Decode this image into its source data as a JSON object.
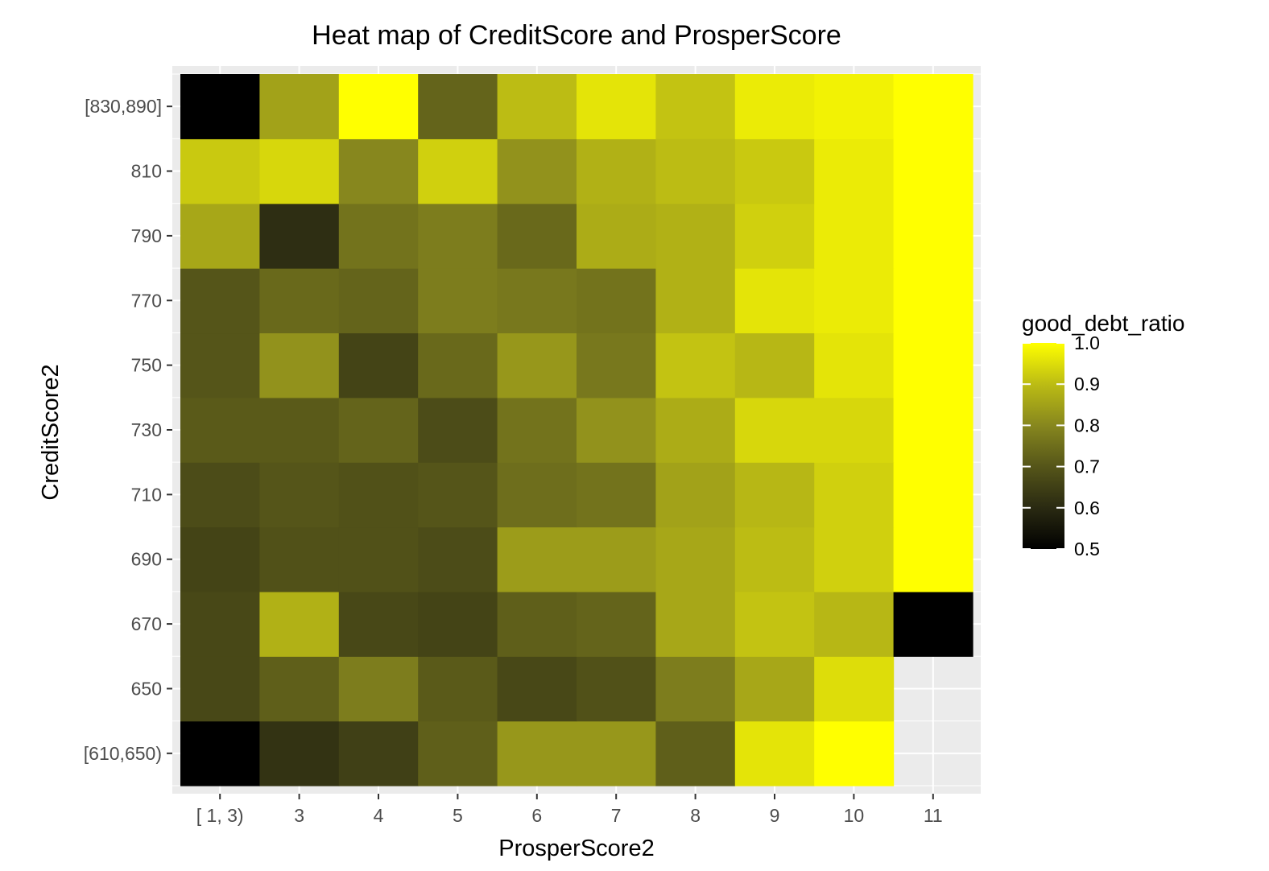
{
  "chart_data": {
    "type": "heatmap",
    "title": "Heat map of CreditScore and ProsperScore",
    "xlabel": "ProsperScore2",
    "ylabel": "CreditScore2",
    "x_categories": [
      "[ 1, 3)",
      "3",
      "4",
      "5",
      "6",
      "7",
      "8",
      "9",
      "10",
      "11"
    ],
    "y_categories": [
      "[610,650)",
      "650",
      "670",
      "690",
      "710",
      "730",
      "750",
      "770",
      "790",
      "810",
      "[830,890]"
    ],
    "legend": {
      "title": "good_debt_ratio",
      "range": [
        0.5,
        1.0
      ],
      "ticks": [
        "1.0",
        "0.9",
        "0.8",
        "0.7",
        "0.6",
        "0.5"
      ],
      "position": "right"
    },
    "color_low": "#000000",
    "color_high": "#ffff00",
    "panel_background": "#ebebeb",
    "grid": true,
    "values": [
      [
        0.5,
        0.62,
        0.65,
        0.72,
        0.83,
        0.83,
        0.72,
        0.96,
        1.0,
        null
      ],
      [
        0.67,
        0.72,
        0.78,
        0.71,
        0.67,
        0.69,
        0.78,
        0.86,
        0.95,
        null
      ],
      [
        0.67,
        0.88,
        0.67,
        0.66,
        0.72,
        0.73,
        0.86,
        0.91,
        0.89,
        0.5
      ],
      [
        0.66,
        0.69,
        0.69,
        0.68,
        0.84,
        0.84,
        0.86,
        0.9,
        0.93,
        1.0
      ],
      [
        0.68,
        0.7,
        0.69,
        0.7,
        0.75,
        0.76,
        0.85,
        0.89,
        0.93,
        1.0
      ],
      [
        0.71,
        0.71,
        0.73,
        0.68,
        0.76,
        0.82,
        0.87,
        0.94,
        0.94,
        1.0
      ],
      [
        0.7,
        0.82,
        0.66,
        0.74,
        0.83,
        0.77,
        0.91,
        0.89,
        0.96,
        1.0
      ],
      [
        0.7,
        0.74,
        0.73,
        0.78,
        0.77,
        0.76,
        0.88,
        0.96,
        0.97,
        1.0
      ],
      [
        0.86,
        0.61,
        0.76,
        0.78,
        0.74,
        0.87,
        0.88,
        0.93,
        0.97,
        1.0
      ],
      [
        0.92,
        0.94,
        0.8,
        0.93,
        0.82,
        0.88,
        0.9,
        0.92,
        0.97,
        1.0
      ],
      [
        0.5,
        0.85,
        1.0,
        0.73,
        0.9,
        0.96,
        0.91,
        0.97,
        0.98,
        1.0
      ]
    ]
  }
}
